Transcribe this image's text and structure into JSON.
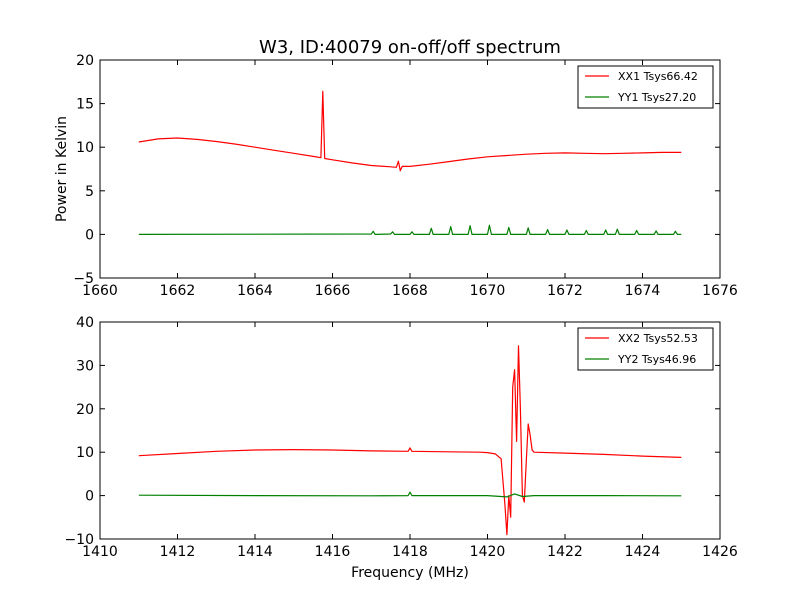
{
  "chart_data": [
    {
      "type": "line",
      "title": "W3, ID:40079 on-off/off spectrum",
      "xlabel": "",
      "ylabel": "Power in Kelvin",
      "xlim": [
        1660,
        1676
      ],
      "ylim": [
        -5,
        20
      ],
      "xticks": [
        1660,
        1662,
        1664,
        1666,
        1668,
        1670,
        1672,
        1674,
        1676
      ],
      "yticks": [
        -5,
        0,
        5,
        10,
        15,
        20
      ],
      "grid": false,
      "legend_position": "top-right",
      "series": [
        {
          "name": "XX1 Tsys66.42",
          "color": "#ff0000",
          "points": [
            [
              1661.0,
              10.6
            ],
            [
              1661.5,
              10.95
            ],
            [
              1662.0,
              11.05
            ],
            [
              1662.5,
              10.9
            ],
            [
              1663.0,
              10.65
            ],
            [
              1663.5,
              10.35
            ],
            [
              1664.0,
              10.0
            ],
            [
              1664.5,
              9.65
            ],
            [
              1665.0,
              9.3
            ],
            [
              1665.5,
              8.95
            ],
            [
              1665.7,
              8.8
            ],
            [
              1665.75,
              16.4
            ],
            [
              1665.8,
              8.7
            ],
            [
              1666.0,
              8.55
            ],
            [
              1666.5,
              8.2
            ],
            [
              1667.0,
              7.9
            ],
            [
              1667.5,
              7.75
            ],
            [
              1667.65,
              7.7
            ],
            [
              1667.7,
              8.4
            ],
            [
              1667.75,
              7.3
            ],
            [
              1667.8,
              7.8
            ],
            [
              1668.0,
              7.8
            ],
            [
              1668.5,
              8.05
            ],
            [
              1669.0,
              8.35
            ],
            [
              1669.5,
              8.65
            ],
            [
              1670.0,
              8.9
            ],
            [
              1670.5,
              9.05
            ],
            [
              1671.0,
              9.2
            ],
            [
              1671.5,
              9.3
            ],
            [
              1672.0,
              9.35
            ],
            [
              1672.5,
              9.3
            ],
            [
              1673.0,
              9.25
            ],
            [
              1673.5,
              9.3
            ],
            [
              1674.0,
              9.35
            ],
            [
              1674.5,
              9.4
            ],
            [
              1675.0,
              9.4
            ]
          ]
        },
        {
          "name": "YY1 Tsys27.20",
          "color": "#008000",
          "points": [
            [
              1661.0,
              0.0
            ],
            [
              1667.0,
              0.05
            ],
            [
              1667.05,
              0.35
            ],
            [
              1667.1,
              0.0
            ],
            [
              1667.5,
              0.05
            ],
            [
              1667.55,
              0.3
            ],
            [
              1667.6,
              0.0
            ],
            [
              1668.0,
              0.0
            ],
            [
              1668.05,
              0.3
            ],
            [
              1668.1,
              0.0
            ],
            [
              1668.5,
              0.0
            ],
            [
              1668.55,
              0.7
            ],
            [
              1668.6,
              0.0
            ],
            [
              1669.0,
              0.0
            ],
            [
              1669.05,
              0.9
            ],
            [
              1669.1,
              0.0
            ],
            [
              1669.5,
              0.0
            ],
            [
              1669.55,
              1.0
            ],
            [
              1669.6,
              0.0
            ],
            [
              1670.0,
              0.0
            ],
            [
              1670.05,
              1.05
            ],
            [
              1670.1,
              0.0
            ],
            [
              1670.5,
              0.0
            ],
            [
              1670.55,
              0.8
            ],
            [
              1670.6,
              0.0
            ],
            [
              1671.0,
              0.0
            ],
            [
              1671.05,
              0.75
            ],
            [
              1671.1,
              0.0
            ],
            [
              1671.5,
              0.0
            ],
            [
              1671.55,
              0.55
            ],
            [
              1671.6,
              0.0
            ],
            [
              1672.0,
              0.0
            ],
            [
              1672.05,
              0.5
            ],
            [
              1672.1,
              0.0
            ],
            [
              1672.5,
              0.0
            ],
            [
              1672.55,
              0.45
            ],
            [
              1672.6,
              0.0
            ],
            [
              1673.0,
              0.0
            ],
            [
              1673.05,
              0.5
            ],
            [
              1673.1,
              0.0
            ],
            [
              1673.3,
              0.0
            ],
            [
              1673.35,
              0.6
            ],
            [
              1673.4,
              0.0
            ],
            [
              1673.8,
              0.0
            ],
            [
              1673.85,
              0.45
            ],
            [
              1673.9,
              0.0
            ],
            [
              1674.3,
              0.0
            ],
            [
              1674.35,
              0.4
            ],
            [
              1674.4,
              0.0
            ],
            [
              1674.8,
              0.0
            ],
            [
              1674.85,
              0.35
            ],
            [
              1674.9,
              0.0
            ],
            [
              1675.0,
              0.0
            ]
          ]
        }
      ]
    },
    {
      "type": "line",
      "title": "",
      "xlabel": "Frequency (MHz)",
      "ylabel": "",
      "xlim": [
        1410,
        1426
      ],
      "ylim": [
        -10,
        40
      ],
      "xticks": [
        1410,
        1412,
        1414,
        1416,
        1418,
        1420,
        1422,
        1424,
        1426
      ],
      "yticks": [
        -10,
        0,
        10,
        20,
        30,
        40
      ],
      "grid": false,
      "legend_position": "top-right",
      "series": [
        {
          "name": "XX2 Tsys52.53",
          "color": "#ff0000",
          "points": [
            [
              1411.0,
              9.2
            ],
            [
              1412.0,
              9.7
            ],
            [
              1413.0,
              10.2
            ],
            [
              1414.0,
              10.5
            ],
            [
              1415.0,
              10.6
            ],
            [
              1416.0,
              10.5
            ],
            [
              1417.0,
              10.3
            ],
            [
              1417.95,
              10.2
            ],
            [
              1418.0,
              11.0
            ],
            [
              1418.05,
              10.2
            ],
            [
              1419.0,
              10.1
            ],
            [
              1419.8,
              10.0
            ],
            [
              1420.0,
              9.9
            ],
            [
              1420.2,
              9.6
            ],
            [
              1420.35,
              8.5
            ],
            [
              1420.45,
              -2.0
            ],
            [
              1420.5,
              -9.0
            ],
            [
              1420.55,
              0.0
            ],
            [
              1420.6,
              -5.0
            ],
            [
              1420.65,
              25.0
            ],
            [
              1420.7,
              29.0
            ],
            [
              1420.75,
              12.5
            ],
            [
              1420.8,
              34.5
            ],
            [
              1420.85,
              20.0
            ],
            [
              1420.9,
              0.0
            ],
            [
              1420.95,
              -1.5
            ],
            [
              1421.0,
              8.0
            ],
            [
              1421.05,
              16.5
            ],
            [
              1421.1,
              14.0
            ],
            [
              1421.15,
              10.5
            ],
            [
              1421.2,
              10.0
            ],
            [
              1422.0,
              9.8
            ],
            [
              1423.0,
              9.5
            ],
            [
              1424.0,
              9.1
            ],
            [
              1425.0,
              8.8
            ]
          ]
        },
        {
          "name": "YY2 Tsys46.96",
          "color": "#008000",
          "points": [
            [
              1411.0,
              0.1
            ],
            [
              1414.0,
              0.0
            ],
            [
              1417.0,
              -0.05
            ],
            [
              1417.95,
              0.0
            ],
            [
              1418.0,
              0.8
            ],
            [
              1418.05,
              0.0
            ],
            [
              1420.0,
              0.0
            ],
            [
              1420.5,
              -0.3
            ],
            [
              1420.7,
              0.4
            ],
            [
              1420.9,
              -0.2
            ],
            [
              1421.2,
              0.0
            ],
            [
              1423.0,
              0.0
            ],
            [
              1425.0,
              -0.05
            ]
          ]
        }
      ]
    }
  ]
}
